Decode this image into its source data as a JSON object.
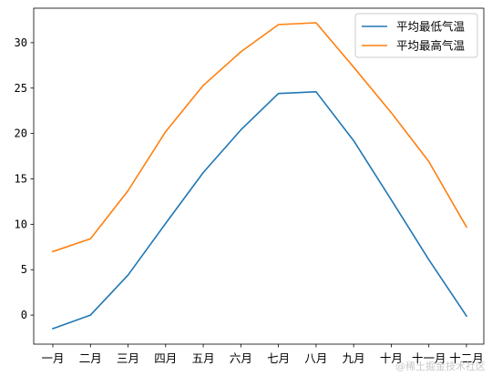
{
  "chart_data": {
    "type": "line",
    "categories": [
      "一月",
      "二月",
      "三月",
      "四月",
      "五月",
      "六月",
      "七月",
      "八月",
      "九月",
      "十月",
      "十一月",
      "十二月"
    ],
    "series": [
      {
        "name": "平均最低气温",
        "color": "#1f77b4",
        "values": [
          -1.5,
          0.0,
          4.4,
          10.1,
          15.7,
          20.4,
          24.4,
          24.6,
          19.2,
          12.7,
          6.1,
          -0.1
        ]
      },
      {
        "name": "平均最高气温",
        "color": "#ff7f0e",
        "values": [
          7.0,
          8.4,
          13.7,
          20.2,
          25.3,
          29.0,
          32.0,
          32.2,
          27.3,
          22.3,
          16.9,
          9.7
        ]
      }
    ],
    "y_ticks": [
      "0",
      "5",
      "10",
      "15",
      "20",
      "25",
      "30"
    ],
    "ylim": [
      -3.2,
      33.8
    ],
    "title": "",
    "xlabel": "",
    "ylabel": "",
    "legend_position": "top-right",
    "grid": false
  },
  "watermark": "@稀土掘金技术社区"
}
